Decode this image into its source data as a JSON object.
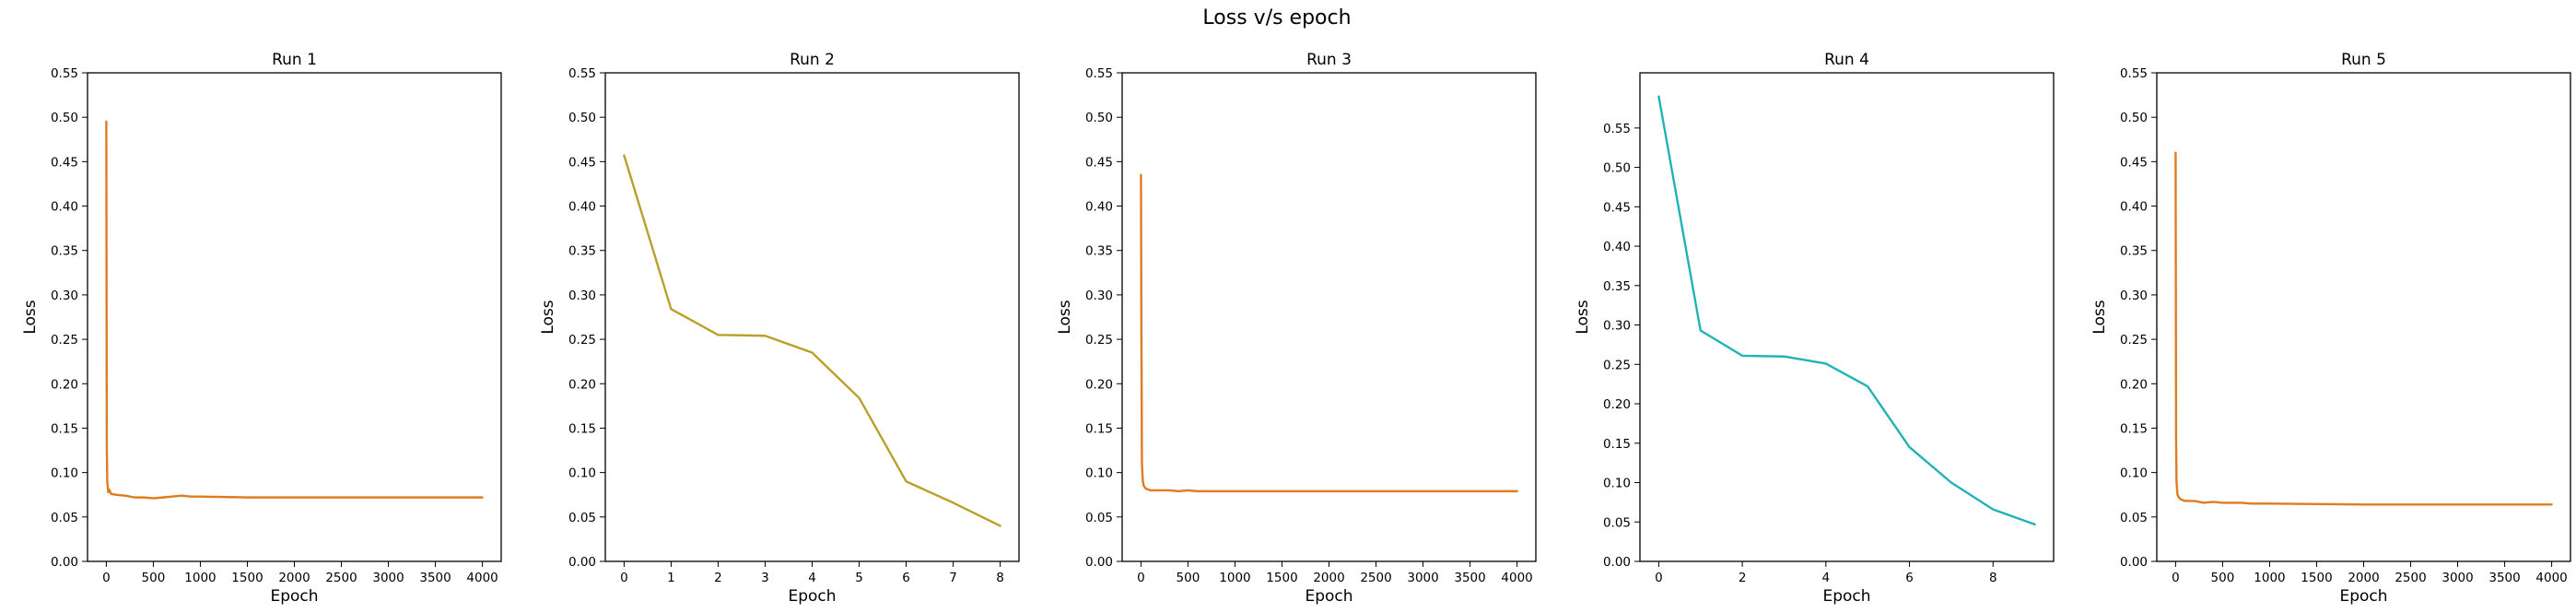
{
  "figure": {
    "title": "Loss v/s epoch"
  },
  "chart_data": [
    {
      "type": "line",
      "title": "Run 1",
      "xlabel": "Epoch",
      "ylabel": "Loss",
      "xlim": [
        -200,
        4200
      ],
      "ylim": [
        0,
        0.55
      ],
      "xticks": [
        0,
        500,
        1000,
        1500,
        2000,
        2500,
        3000,
        3500,
        4000
      ],
      "xtick_labels": [
        "0",
        "500",
        "1000",
        "1500",
        "2000",
        "2500",
        "3000",
        "3500",
        "4000"
      ],
      "yticks": [
        0,
        0.05,
        0.1,
        0.15,
        0.2,
        0.25,
        0.3,
        0.35,
        0.4,
        0.45,
        0.5,
        0.55
      ],
      "ytick_labels": [
        "0.00",
        "0.05",
        "0.10",
        "0.15",
        "0.20",
        "0.25",
        "0.30",
        "0.35",
        "0.40",
        "0.45",
        "0.50",
        "0.55"
      ],
      "color": "#e07b1f",
      "x": [
        0,
        5,
        10,
        20,
        30,
        50,
        100,
        200,
        300,
        400,
        500,
        600,
        700,
        800,
        900,
        1000,
        1500,
        2000,
        3000,
        4000
      ],
      "y": [
        0.495,
        0.13,
        0.09,
        0.078,
        0.081,
        0.076,
        0.075,
        0.074,
        0.072,
        0.072,
        0.071,
        0.072,
        0.073,
        0.074,
        0.073,
        0.073,
        0.072,
        0.072,
        0.072,
        0.072
      ]
    },
    {
      "type": "line",
      "title": "Run 2",
      "xlabel": "Epoch",
      "ylabel": "Loss",
      "xlim": [
        -0.4,
        8.4
      ],
      "ylim": [
        0,
        0.55
      ],
      "xticks": [
        0,
        1,
        2,
        3,
        4,
        5,
        6,
        7,
        8
      ],
      "xtick_labels": [
        "0",
        "1",
        "2",
        "3",
        "4",
        "5",
        "6",
        "7",
        "8"
      ],
      "yticks": [
        0,
        0.05,
        0.1,
        0.15,
        0.2,
        0.25,
        0.3,
        0.35,
        0.4,
        0.45,
        0.5,
        0.55
      ],
      "ytick_labels": [
        "0.00",
        "0.05",
        "0.10",
        "0.15",
        "0.20",
        "0.25",
        "0.30",
        "0.35",
        "0.40",
        "0.45",
        "0.50",
        "0.55"
      ],
      "color": "#b8a12a",
      "x": [
        0,
        1,
        2,
        3,
        4,
        5,
        6,
        7,
        8
      ],
      "y": [
        0.457,
        0.284,
        0.255,
        0.254,
        0.235,
        0.184,
        0.09,
        0.066,
        0.04
      ]
    },
    {
      "type": "line",
      "title": "Run 3",
      "xlabel": "Epoch",
      "ylabel": "Loss",
      "xlim": [
        -200,
        4200
      ],
      "ylim": [
        0,
        0.55
      ],
      "xticks": [
        0,
        500,
        1000,
        1500,
        2000,
        2500,
        3000,
        3500,
        4000
      ],
      "xtick_labels": [
        "0",
        "500",
        "1000",
        "1500",
        "2000",
        "2500",
        "3000",
        "3500",
        "4000"
      ],
      "yticks": [
        0,
        0.05,
        0.1,
        0.15,
        0.2,
        0.25,
        0.3,
        0.35,
        0.4,
        0.45,
        0.5,
        0.55
      ],
      "ytick_labels": [
        "0.00",
        "0.05",
        "0.10",
        "0.15",
        "0.20",
        "0.25",
        "0.30",
        "0.35",
        "0.40",
        "0.45",
        "0.50",
        "0.55"
      ],
      "color": "#e07b1f",
      "x": [
        0,
        5,
        10,
        20,
        30,
        50,
        100,
        200,
        300,
        400,
        500,
        600,
        1000,
        2000,
        3000,
        4000
      ],
      "y": [
        0.435,
        0.25,
        0.11,
        0.09,
        0.085,
        0.082,
        0.08,
        0.08,
        0.08,
        0.079,
        0.08,
        0.079,
        0.079,
        0.079,
        0.079,
        0.079
      ]
    },
    {
      "type": "line",
      "title": "Run 4",
      "xlabel": "Epoch",
      "ylabel": "Loss",
      "xlim": [
        -0.45,
        9.45
      ],
      "ylim": [
        0,
        0.62
      ],
      "xticks": [
        0,
        2,
        4,
        6,
        8
      ],
      "xtick_labels": [
        "0",
        "2",
        "4",
        "6",
        "8"
      ],
      "yticks": [
        0,
        0.05,
        0.1,
        0.15,
        0.2,
        0.25,
        0.3,
        0.35,
        0.4,
        0.45,
        0.5,
        0.55
      ],
      "ytick_labels": [
        "0.00",
        "0.05",
        "0.10",
        "0.15",
        "0.20",
        "0.25",
        "0.30",
        "0.35",
        "0.40",
        "0.45",
        "0.50",
        "0.55"
      ],
      "color": "#1fb3b8",
      "x": [
        0,
        1,
        2,
        3,
        4,
        5,
        6,
        7,
        8,
        9
      ],
      "y": [
        0.59,
        0.293,
        0.261,
        0.26,
        0.251,
        0.222,
        0.145,
        0.1,
        0.066,
        0.047
      ]
    },
    {
      "type": "line",
      "title": "Run 5",
      "xlabel": "Epoch",
      "ylabel": "Loss",
      "xlim": [
        -200,
        4200
      ],
      "ylim": [
        0,
        0.55
      ],
      "xticks": [
        0,
        500,
        1000,
        1500,
        2000,
        2500,
        3000,
        3500,
        4000
      ],
      "xtick_labels": [
        "0",
        "500",
        "1000",
        "1500",
        "2000",
        "2500",
        "3000",
        "3500",
        "4000"
      ],
      "yticks": [
        0,
        0.05,
        0.1,
        0.15,
        0.2,
        0.25,
        0.3,
        0.35,
        0.4,
        0.45,
        0.5,
        0.55
      ],
      "ytick_labels": [
        "0.00",
        "0.05",
        "0.10",
        "0.15",
        "0.20",
        "0.25",
        "0.30",
        "0.35",
        "0.40",
        "0.45",
        "0.50",
        "0.55"
      ],
      "color": "#e07b1f",
      "x": [
        0,
        5,
        10,
        20,
        30,
        50,
        100,
        200,
        300,
        400,
        500,
        600,
        700,
        800,
        900,
        1000,
        2000,
        3000,
        4000
      ],
      "y": [
        0.46,
        0.14,
        0.09,
        0.075,
        0.073,
        0.07,
        0.068,
        0.068,
        0.066,
        0.067,
        0.066,
        0.066,
        0.066,
        0.065,
        0.065,
        0.065,
        0.064,
        0.064,
        0.064
      ]
    }
  ]
}
